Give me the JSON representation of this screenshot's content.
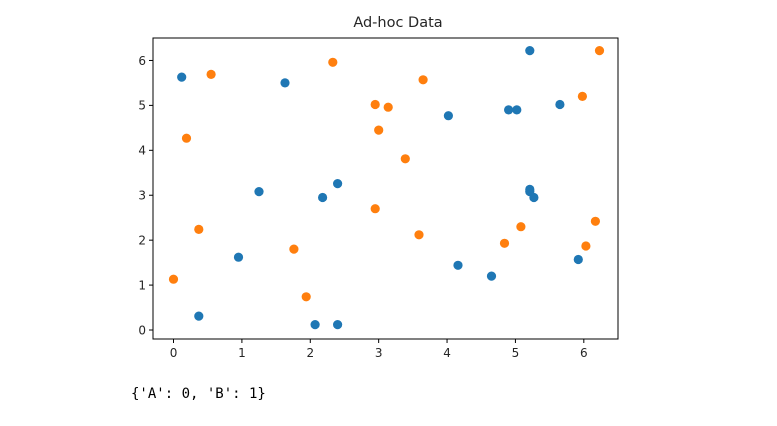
{
  "output_text": "{'A': 0, 'B': 1}",
  "colors": {
    "series_A": "#1f77b4",
    "series_B": "#ff7f0e",
    "axis": "#000000",
    "text": "#262626"
  },
  "chart_data": {
    "type": "scatter",
    "title": "Ad-hoc Data",
    "xlabel": "",
    "ylabel": "",
    "xlim": [
      -0.3,
      6.5
    ],
    "ylim": [
      -0.2,
      6.5
    ],
    "xticks": [
      0,
      1,
      2,
      3,
      4,
      5,
      6
    ],
    "yticks": [
      0,
      1,
      2,
      3,
      4,
      5,
      6
    ],
    "grid": false,
    "series": [
      {
        "color": "#1f77b4",
        "points": [
          [
            0.12,
            5.63
          ],
          [
            1.63,
            5.5
          ],
          [
            5.21,
            6.22
          ],
          [
            4.02,
            4.77
          ],
          [
            4.9,
            4.9
          ],
          [
            5.02,
            4.9
          ],
          [
            5.65,
            5.02
          ],
          [
            1.25,
            3.08
          ],
          [
            2.18,
            2.95
          ],
          [
            2.4,
            3.26
          ],
          [
            5.21,
            3.13
          ],
          [
            5.21,
            3.08
          ],
          [
            5.27,
            2.95
          ],
          [
            0.95,
            1.62
          ],
          [
            0.37,
            0.31
          ],
          [
            2.07,
            0.12
          ],
          [
            2.4,
            0.12
          ],
          [
            4.16,
            1.44
          ],
          [
            4.65,
            1.2
          ],
          [
            5.92,
            1.57
          ]
        ]
      },
      {
        "color": "#ff7f0e",
        "points": [
          [
            0.55,
            5.69
          ],
          [
            2.33,
            5.96
          ],
          [
            0.19,
            4.27
          ],
          [
            2.95,
            5.02
          ],
          [
            3.14,
            4.96
          ],
          [
            3.65,
            5.57
          ],
          [
            5.98,
            5.2
          ],
          [
            6.23,
            6.22
          ],
          [
            3.0,
            4.45
          ],
          [
            3.39,
            3.81
          ],
          [
            0.0,
            1.13
          ],
          [
            0.37,
            2.24
          ],
          [
            1.76,
            1.8
          ],
          [
            1.94,
            0.74
          ],
          [
            2.95,
            2.7
          ],
          [
            3.59,
            2.12
          ],
          [
            4.84,
            1.93
          ],
          [
            5.08,
            2.3
          ],
          [
            6.03,
            1.87
          ],
          [
            6.17,
            2.42
          ]
        ]
      }
    ]
  }
}
